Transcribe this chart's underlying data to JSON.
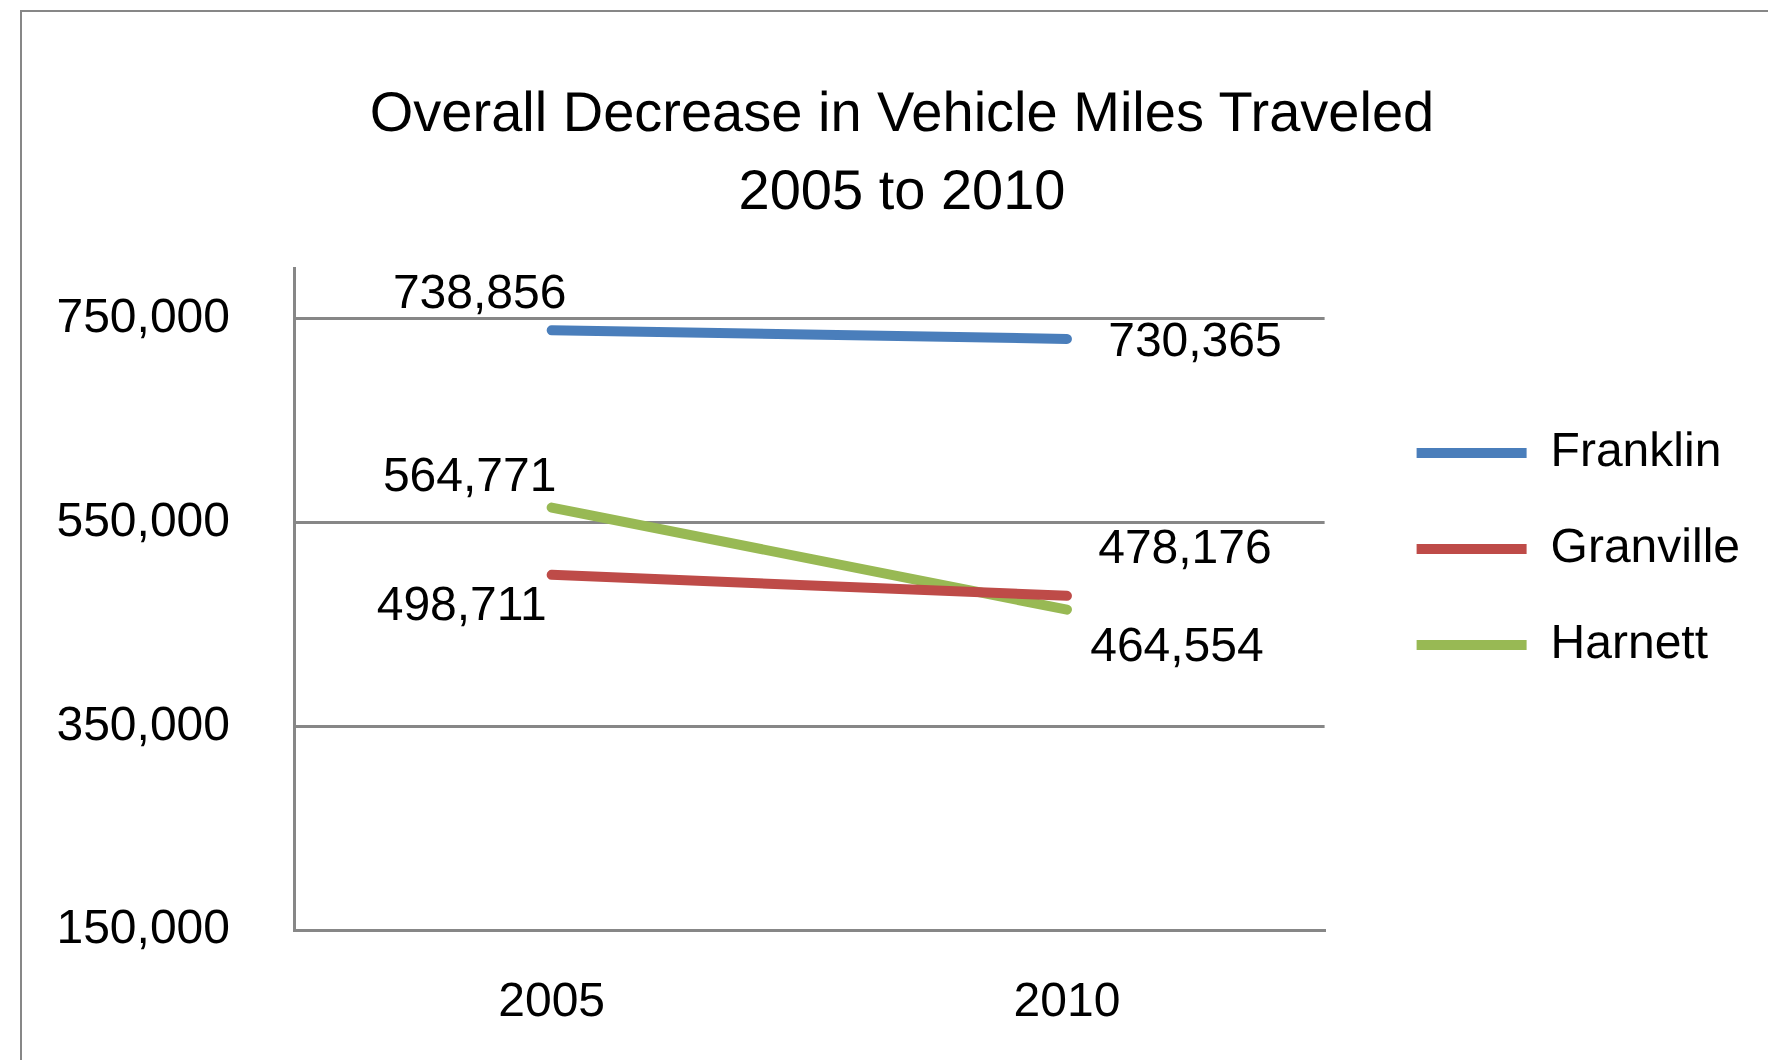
{
  "chart_data": {
    "type": "line",
    "title": "Overall Decrease in Vehicle Miles Traveled\n2005 to 2010",
    "categories": [
      "2005",
      "2010"
    ],
    "series": [
      {
        "name": "Franklin",
        "color": "#4a7ebb",
        "values": [
          738856,
          730365
        ],
        "value_labels": [
          "738,856",
          "730,365"
        ]
      },
      {
        "name": "Granville",
        "color": "#be4b48",
        "values": [
          498711,
          478176
        ],
        "value_labels": [
          "498,711",
          "478,176"
        ]
      },
      {
        "name": "Harnett",
        "color": "#98b954",
        "values": [
          564771,
          464554
        ],
        "value_labels": [
          "564,771",
          "464,554"
        ]
      }
    ],
    "ylim": [
      150000,
      800000
    ],
    "yticks": [
      {
        "value": 150000,
        "label": "150,000"
      },
      {
        "value": 350000,
        "label": "350,000"
      },
      {
        "value": 550000,
        "label": "550,000"
      },
      {
        "value": 750000,
        "label": "750,000"
      }
    ],
    "grid": "y",
    "legend": "right",
    "marker": "none",
    "line_style": "solid"
  }
}
